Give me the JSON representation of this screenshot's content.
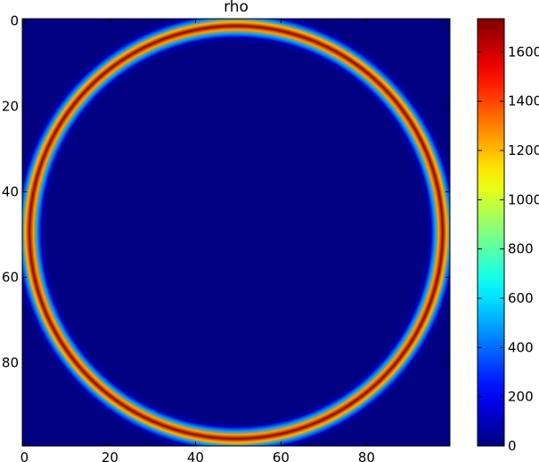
{
  "chart_data": {
    "type": "heatmap",
    "title": "rho",
    "xlim": [
      -0.5,
      99.5
    ],
    "ylim": [
      99.5,
      -0.5
    ],
    "xticks": [
      0,
      20,
      40,
      60,
      80
    ],
    "yticks": [
      0,
      20,
      40,
      60,
      80
    ],
    "colormap": "jet",
    "clim": [
      0,
      1735
    ],
    "cticks": [
      0,
      200,
      400,
      600,
      800,
      1000,
      1200,
      1400,
      1600
    ],
    "ring": {
      "center_x": 49.5,
      "center_y": 49.5,
      "radius": 48.3,
      "half_width": 1.6,
      "peak": 1700
    }
  }
}
